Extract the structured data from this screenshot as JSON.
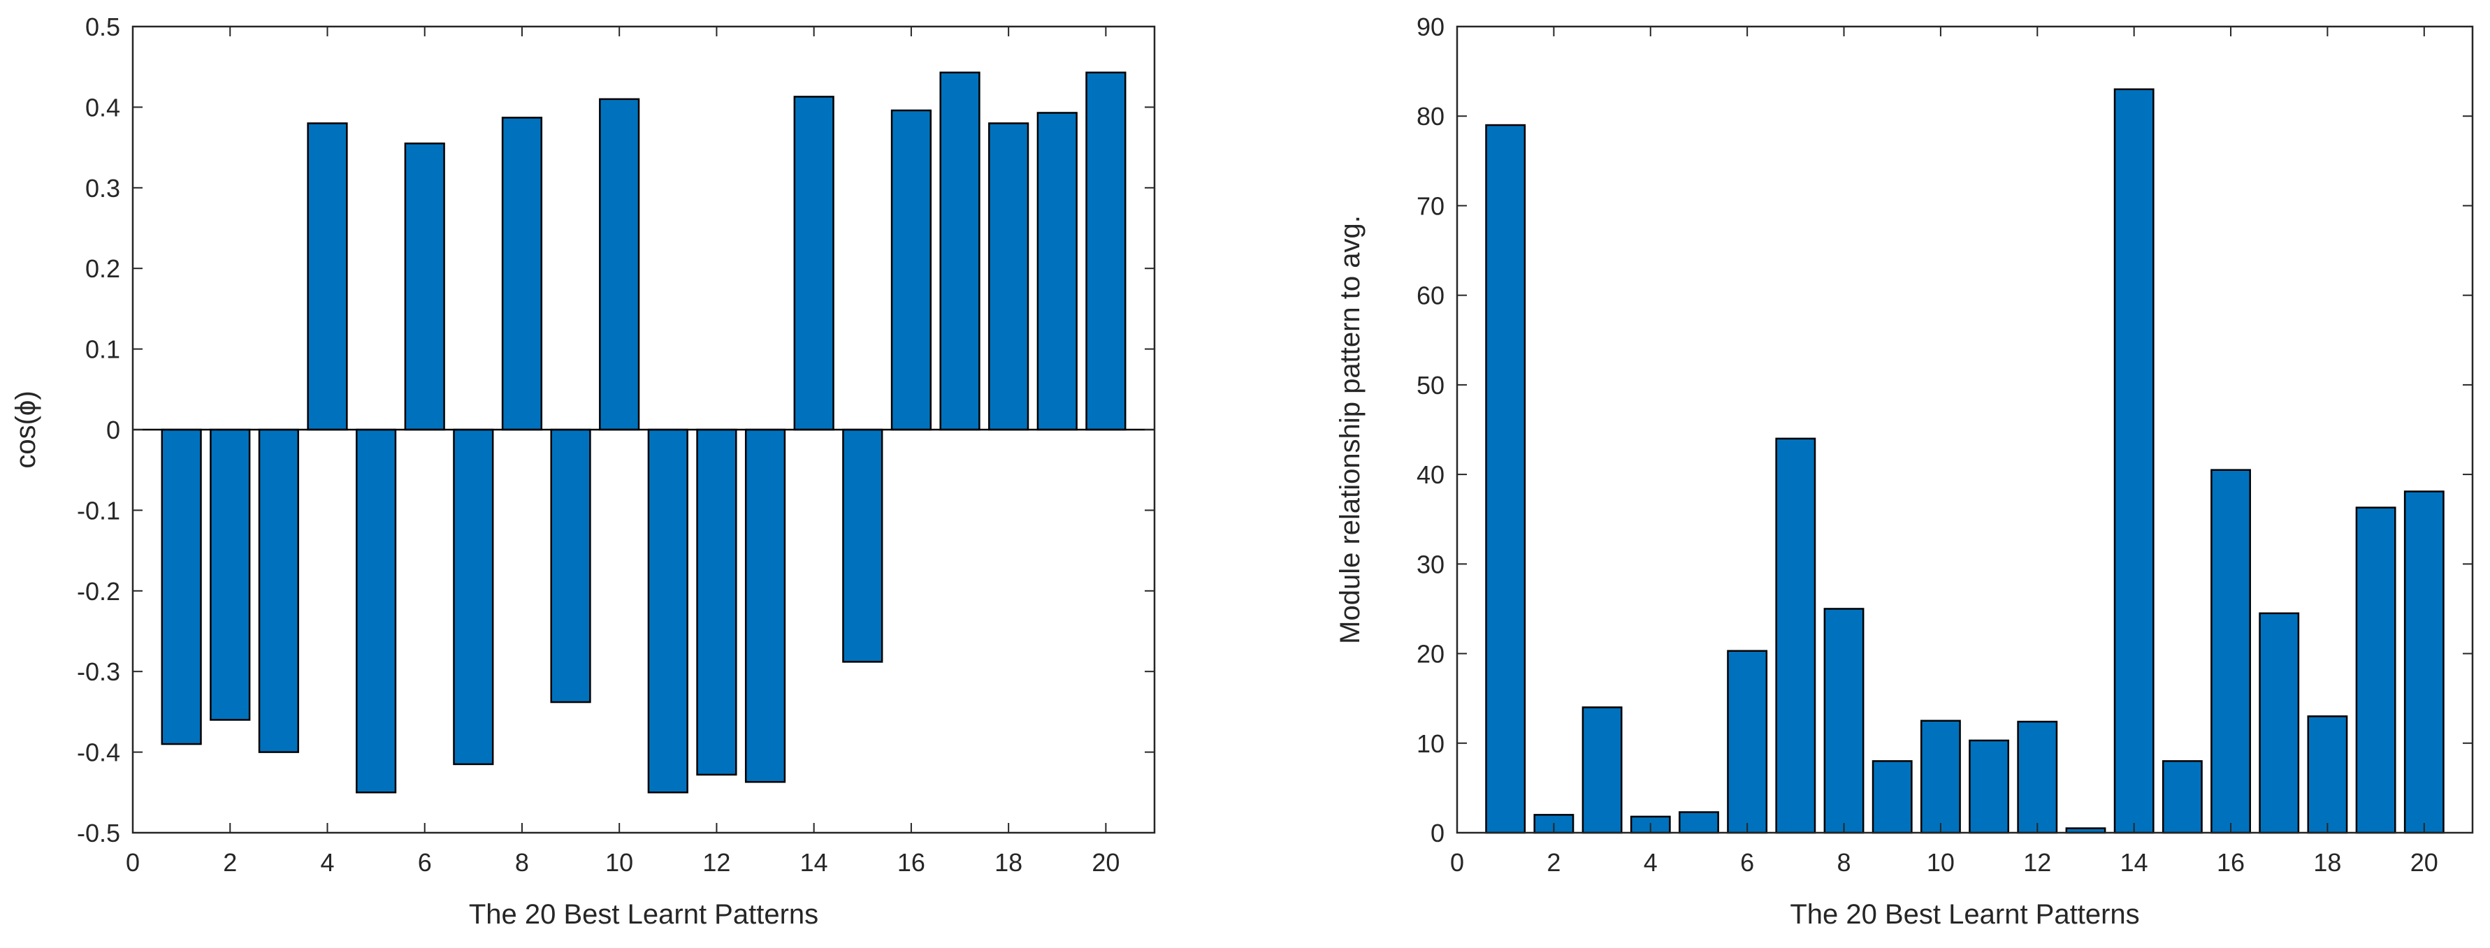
{
  "chart_data": [
    {
      "type": "bar",
      "xlabel": "The 20 Best Learnt Patterns",
      "ylabel": "cos(ϕ)",
      "xlim": [
        0,
        21
      ],
      "ylim": [
        -0.5,
        0.5
      ],
      "xticks": [
        0,
        2,
        4,
        6,
        8,
        10,
        12,
        14,
        16,
        18,
        20
      ],
      "yticks": [
        -0.5,
        -0.4,
        -0.3,
        -0.2,
        -0.1,
        0,
        0.1,
        0.2,
        0.3,
        0.4,
        0.5
      ],
      "ytick_labels": [
        "-0.5",
        "-0.4",
        "-0.3",
        "-0.2",
        "-0.1",
        "0",
        "0.1",
        "0.2",
        "0.3",
        "0.4",
        "0.5"
      ],
      "categories": [
        1,
        2,
        3,
        4,
        5,
        6,
        7,
        8,
        9,
        10,
        11,
        12,
        13,
        14,
        15,
        16,
        17,
        18,
        19,
        20
      ],
      "values": [
        -0.39,
        -0.36,
        -0.4,
        0.38,
        -0.45,
        0.355,
        -0.415,
        0.387,
        -0.338,
        0.41,
        -0.45,
        -0.428,
        -0.437,
        0.413,
        -0.288,
        0.396,
        0.443,
        0.38,
        0.393,
        0.443
      ],
      "bar_color": "#0072bd",
      "baseline": true
    },
    {
      "type": "bar",
      "xlabel": "The 20 Best Learnt Patterns",
      "ylabel": "Module relationship pattern to avg.",
      "xlim": [
        0,
        21
      ],
      "ylim": [
        0,
        90
      ],
      "xticks": [
        0,
        2,
        4,
        6,
        8,
        10,
        12,
        14,
        16,
        18,
        20
      ],
      "yticks": [
        0,
        10,
        20,
        30,
        40,
        50,
        60,
        70,
        80,
        90
      ],
      "ytick_labels": [
        "0",
        "10",
        "20",
        "30",
        "40",
        "50",
        "60",
        "70",
        "80",
        "90"
      ],
      "categories": [
        1,
        2,
        3,
        4,
        5,
        6,
        7,
        8,
        9,
        10,
        11,
        12,
        13,
        14,
        15,
        16,
        17,
        18,
        19,
        20
      ],
      "values": [
        79,
        2,
        14,
        1.8,
        2.3,
        20.3,
        44,
        25,
        8,
        12.5,
        10.3,
        12.4,
        0.5,
        83,
        8,
        40.5,
        24.5,
        13,
        36.3,
        38.1
      ],
      "bar_color": "#0072bd",
      "baseline": false
    }
  ]
}
